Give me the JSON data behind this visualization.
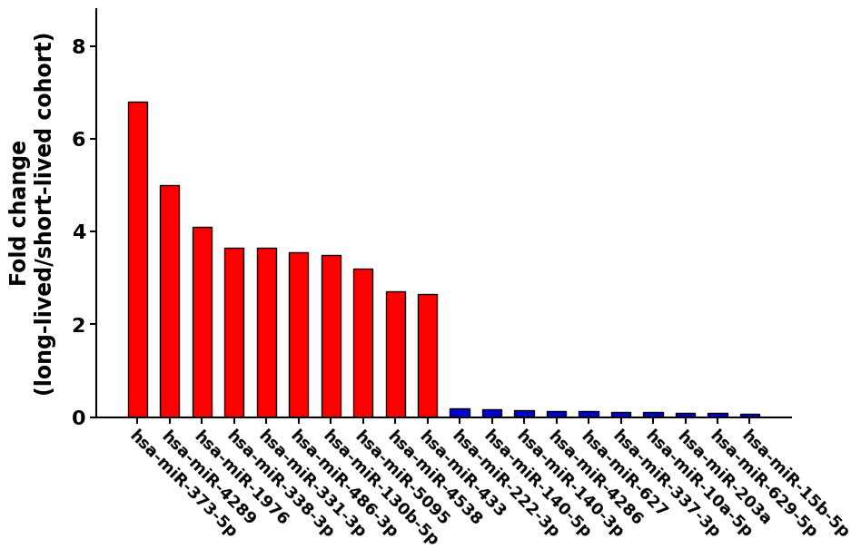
{
  "categories": [
    "hsa-miR-373-5p",
    "hsa-miR-4289",
    "hsa-miR-1976",
    "hsa-miR-338-3p",
    "hsa-miR-331-3p",
    "hsa-miR-486-3p",
    "hsa-miR-130b-5p",
    "hsa-miR-5095",
    "hsa-miR-4538",
    "hsa-miR-433",
    "hsa-miR-222-3p",
    "hsa-miR-140-5p",
    "hsa-miR-140-3p",
    "hsa-miR-4286",
    "hsa-miR-627",
    "hsa-miR-337-3p",
    "hsa-miR-10a-5p",
    "hsa-miR-203a",
    "hsa-miR-629-5p",
    "hsa-miR-15b-5p"
  ],
  "values": [
    6.8,
    5.0,
    4.1,
    3.65,
    3.65,
    3.55,
    3.5,
    3.2,
    2.72,
    2.65,
    0.18,
    0.16,
    0.15,
    0.14,
    0.13,
    0.12,
    0.11,
    0.1,
    0.09,
    0.08
  ],
  "colors": [
    "#ff0000",
    "#ff0000",
    "#ff0000",
    "#ff0000",
    "#ff0000",
    "#ff0000",
    "#ff0000",
    "#ff0000",
    "#ff0000",
    "#ff0000",
    "#0000cc",
    "#0000cc",
    "#0000cc",
    "#0000cc",
    "#0000cc",
    "#0000cc",
    "#0000cc",
    "#0000cc",
    "#0000cc",
    "#0000cc"
  ],
  "ylabel_line1": "Fold change",
  "ylabel_line2": "(long-lived/short-lived cohort)",
  "ylim": [
    0,
    8.8
  ],
  "yticks": [
    0,
    2,
    4,
    6,
    8
  ],
  "bar_edgecolor": "#000000",
  "bar_linewidth": 1.0,
  "bar_width": 0.6,
  "background_color": "#ffffff",
  "tick_label_fontsize": 13,
  "ylabel_fontsize": 17,
  "ytick_fontsize": 16,
  "label_rotation": -45,
  "label_ha": "left"
}
